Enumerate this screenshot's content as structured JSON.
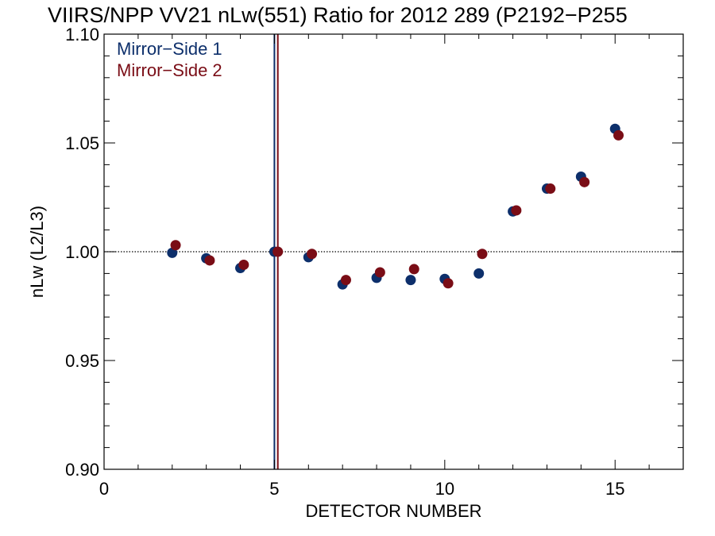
{
  "chart_data": {
    "type": "scatter",
    "title": "VIIRS/NPP VV21 nLw(551) Ratio for 2012 289 (P2192−P255",
    "xlabel": "DETECTOR NUMBER",
    "ylabel": "nLw (L2/L3)",
    "xlim": [
      0,
      17
    ],
    "ylim": [
      0.9,
      1.1
    ],
    "x_ticks": [
      0,
      5,
      10,
      15
    ],
    "x_tick_labels": [
      "0",
      "5",
      "10",
      "15"
    ],
    "y_ticks": [
      0.9,
      0.95,
      1.0,
      1.05,
      1.1
    ],
    "y_tick_labels": [
      "0.90",
      "0.95",
      "1.00",
      "1.05",
      "1.10"
    ],
    "reference_line_y": 1.0,
    "vertical_lines": [
      {
        "x": 5.0,
        "color": "#0d2f6b"
      },
      {
        "x": 5.1,
        "color": "#7a0d16"
      }
    ],
    "legend_position": "top-left",
    "grid": false,
    "series": [
      {
        "name": "Mirror−Side 1",
        "color": "#0d2f6b",
        "x": [
          2,
          3,
          4,
          5,
          6,
          7,
          8,
          9,
          10,
          11,
          12,
          13,
          14,
          15
        ],
        "y": [
          0.9995,
          0.997,
          0.9925,
          1.0,
          0.9975,
          0.985,
          0.988,
          0.987,
          0.9875,
          0.99,
          1.0185,
          1.029,
          1.0345,
          1.0565
        ]
      },
      {
        "name": "Mirror−Side 2",
        "color": "#7a0d16",
        "x": [
          2.1,
          3.1,
          4.1,
          5.1,
          6.1,
          7.1,
          8.1,
          9.1,
          10.1,
          11.1,
          12.1,
          13.1,
          14.1,
          15.1
        ],
        "y": [
          1.003,
          0.996,
          0.994,
          1.0,
          0.999,
          0.987,
          0.9905,
          0.992,
          0.9855,
          0.999,
          1.019,
          1.029,
          1.032,
          1.0535
        ]
      }
    ]
  }
}
